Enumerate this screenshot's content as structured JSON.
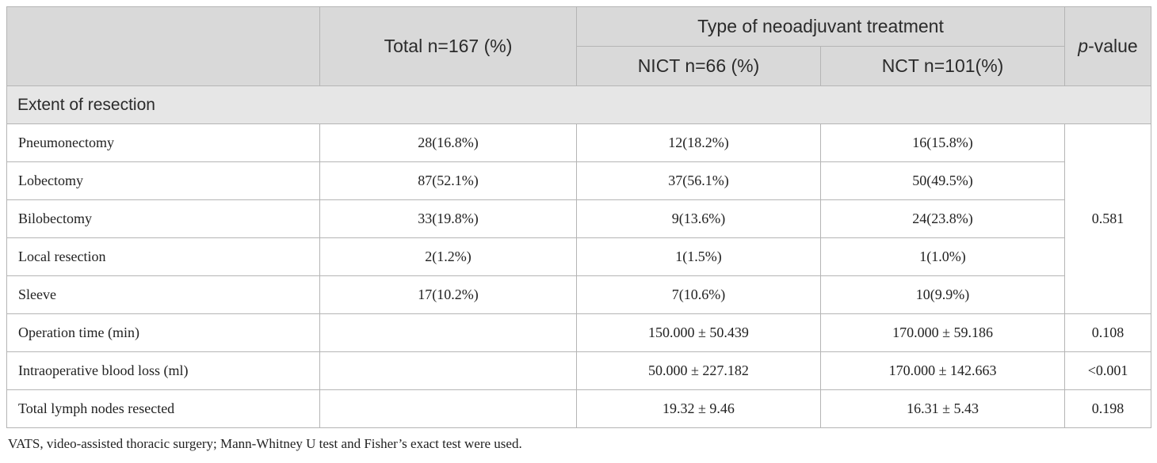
{
  "header": {
    "total": "Total n=167 (%)",
    "group": "Type of neoadjuvant treatment",
    "nict": "NICT n=66 (%)",
    "nct": "NCT n=101(%)",
    "pvalue_italic": "p",
    "pvalue_rest": "-value"
  },
  "section": {
    "title": "Extent of resection",
    "shared_p": "0.581"
  },
  "rows": [
    {
      "label": "Pneumonectomy",
      "total": "28(16.8%)",
      "nict": "12(18.2%)",
      "nct": "16(15.8%)"
    },
    {
      "label": "Lobectomy",
      "total": "87(52.1%)",
      "nict": "37(56.1%)",
      "nct": "50(49.5%)"
    },
    {
      "label": "Bilobectomy",
      "total": "33(19.8%)",
      "nict": "9(13.6%)",
      "nct": "24(23.8%)"
    },
    {
      "label": "Local resection",
      "total": "2(1.2%)",
      "nict": "1(1.5%)",
      "nct": "1(1.0%)"
    },
    {
      "label": "Sleeve",
      "total": "17(10.2%)",
      "nict": "7(10.6%)",
      "nct": "10(9.9%)"
    }
  ],
  "other_rows": [
    {
      "label": "Operation time (min)",
      "total": "",
      "nict": "150.000 ± 50.439",
      "nct": "170.000 ± 59.186",
      "p": "0.108"
    },
    {
      "label": "Intraoperative blood loss (ml)",
      "total": "",
      "nict": "50.000 ± 227.182",
      "nct": "170.000 ± 142.663",
      "p": "<0.001"
    },
    {
      "label": "Total lymph nodes resected",
      "total": "",
      "nict": "19.32 ± 9.46",
      "nct": "16.31 ± 5.43",
      "p": "0.198"
    }
  ],
  "footnote": "VATS, video-assisted thoracic surgery; Mann-Whitney U test and Fisher’s exact test were used."
}
